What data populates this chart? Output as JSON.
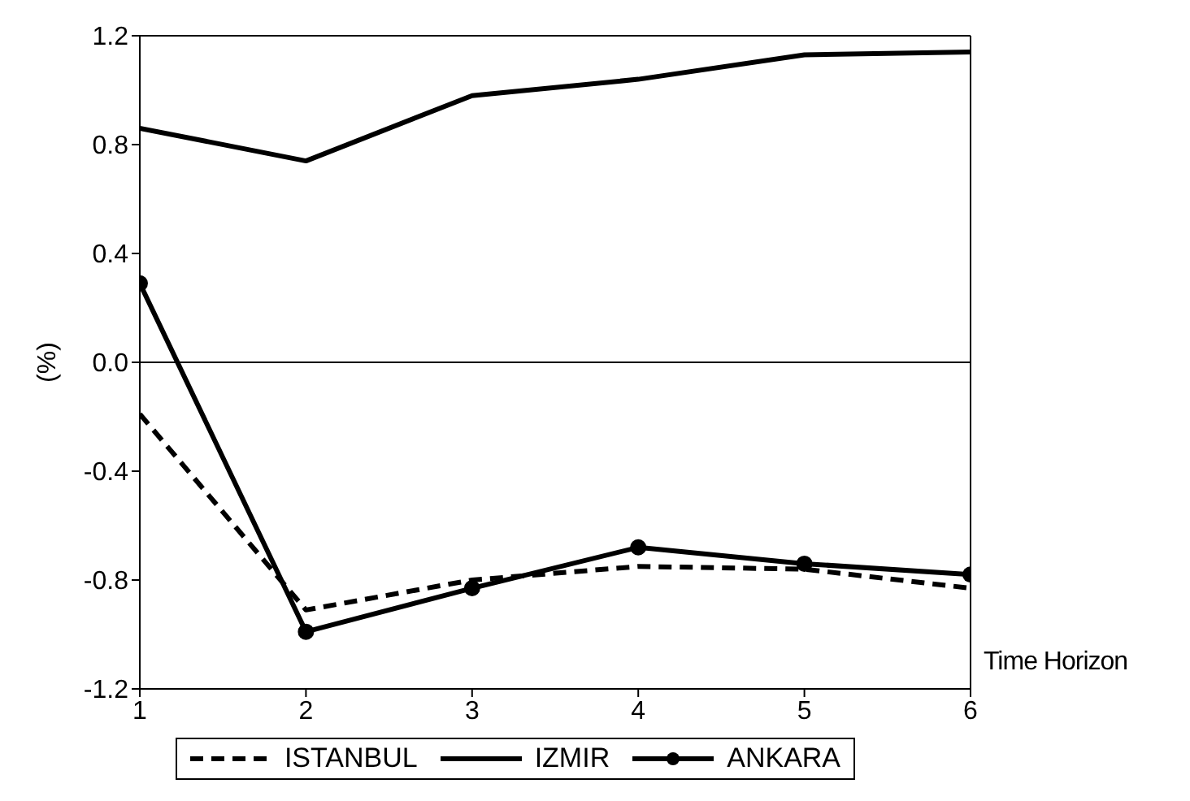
{
  "chart_data": {
    "type": "line",
    "xlabel": "Time Horizon",
    "ylabel": "(%)",
    "x": [
      1,
      2,
      3,
      4,
      5,
      6
    ],
    "series": [
      {
        "name": "ISTANBUL",
        "color": "#000000",
        "line_style": "dashed",
        "marker": "none",
        "values": [
          -0.19,
          -0.91,
          -0.8,
          -0.75,
          -0.76,
          -0.83
        ]
      },
      {
        "name": "IZMIR",
        "color": "#000000",
        "line_style": "solid",
        "marker": "none",
        "values": [
          0.86,
          0.74,
          0.98,
          1.04,
          1.13,
          1.14
        ]
      },
      {
        "name": "ANKARA",
        "color": "#000000",
        "line_style": "solid",
        "marker": "circle",
        "values": [
          0.29,
          -0.99,
          -0.83,
          -0.68,
          -0.74,
          -0.78
        ]
      }
    ],
    "xlim": [
      1,
      6
    ],
    "xticks": [
      1,
      2,
      3,
      4,
      5,
      6
    ],
    "ylim": [
      -1.2,
      1.2
    ],
    "yticks": [
      -1.2,
      -0.8,
      -0.4,
      {
        "value": 0,
        "label": "0.0"
      },
      0.4,
      0.8,
      1.2
    ],
    "ref_lines": [
      {
        "axis": "y",
        "value": 0,
        "label": null,
        "color": "#000000"
      }
    ],
    "grid": false,
    "legend": "bottom"
  }
}
